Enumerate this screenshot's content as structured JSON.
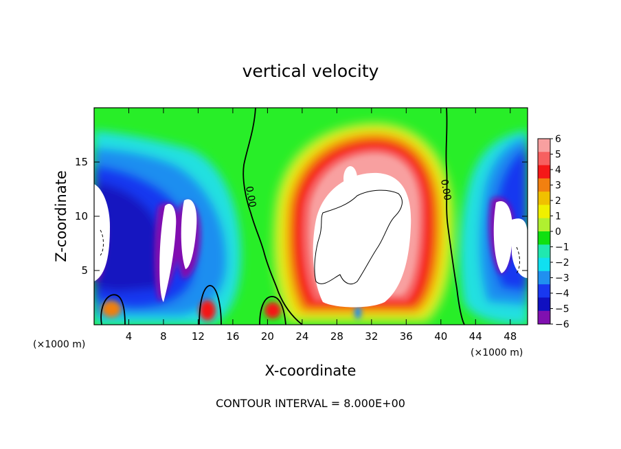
{
  "chart_data": {
    "type": "heatmap",
    "title": "vertical velocity",
    "xlabel": "X-coordinate",
    "ylabel": "Z-coordinate",
    "x_unit_left": "(×1000 m)",
    "x_unit_right": "(×1000 m)",
    "xlim": [
      0,
      50
    ],
    "ylim": [
      0,
      20
    ],
    "x_ticks": [
      4,
      8,
      12,
      16,
      20,
      24,
      28,
      32,
      36,
      40,
      44,
      48
    ],
    "y_ticks": [
      5,
      10,
      15
    ],
    "colorbar": {
      "ticks": [
        6,
        5,
        4,
        3,
        2,
        1,
        0,
        -1,
        -2,
        -3,
        -4,
        -5,
        -6
      ],
      "labels": [
        "6",
        "5",
        "4",
        "3",
        "2",
        "1",
        "0",
        "−1",
        "−2",
        "−3",
        "−4",
        "−5",
        "−6"
      ],
      "colors": [
        "#f8a0a0",
        "#f76060",
        "#f51818",
        "#f28010",
        "#f0c000",
        "#f0f000",
        "#b0f030",
        "#10e010",
        "#20e8b0",
        "#10e0f0",
        "#2090f0",
        "#1838f0",
        "#1010c0",
        "#8010b0"
      ],
      "above_range_color": "#ffffff"
    },
    "contour_labels": [
      "0.00",
      "0.00"
    ],
    "contour_interval_text": "CONTOUR INTERVAL = 8.000E+00",
    "features": [
      {
        "name": "updraft core",
        "x_center": 30,
        "z_center": 10,
        "max_value": 6
      },
      {
        "name": "left downdraft",
        "x_center": 6,
        "z_center": 9,
        "min_value": -6
      },
      {
        "name": "right downdraft",
        "x_center": 47,
        "z_center": 9,
        "min_value": -6
      }
    ]
  }
}
